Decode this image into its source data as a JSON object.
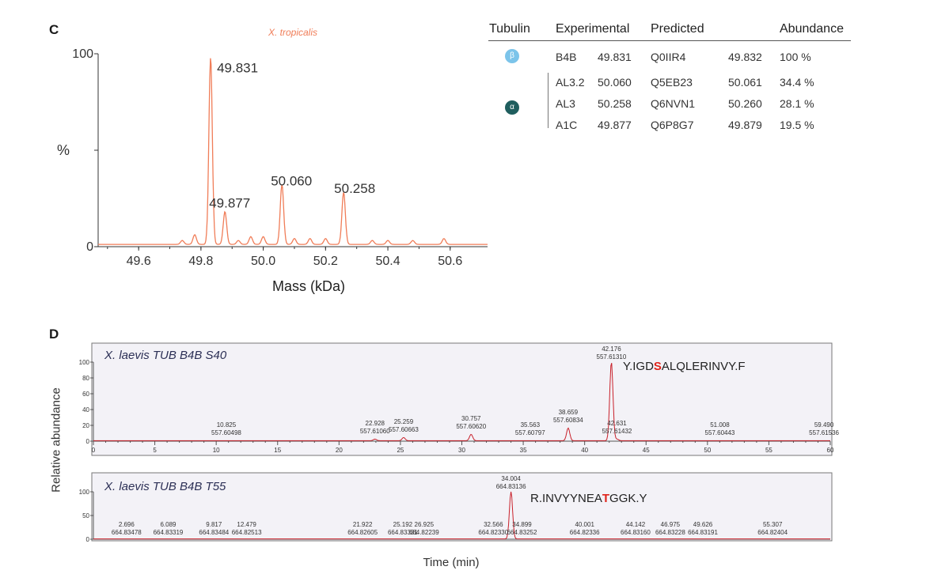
{
  "panel_c": {
    "letter": "C",
    "table": {
      "headers": [
        "Tubulin",
        "Experimental",
        "Predicted",
        "Abundance"
      ],
      "beta_symbol": "β",
      "alpha_symbol": "α",
      "colors": {
        "beta": "#7cc4ea",
        "alpha": "#1f5e5e"
      },
      "rows": [
        {
          "name": "B4B",
          "experimental": "49.831",
          "id": "Q0IIR4",
          "predicted": "49.832",
          "abundance": "100 %"
        },
        {
          "name": "AL3.2",
          "experimental": "50.060",
          "id": "Q5EB23",
          "predicted": "50.061",
          "abundance": "34.4 %"
        },
        {
          "name": "AL3",
          "experimental": "50.258",
          "id": "Q6NVN1",
          "predicted": "50.260",
          "abundance": "28.1 %"
        },
        {
          "name": "A1C",
          "experimental": "49.877",
          "id": "Q6P8G7",
          "predicted": "49.879",
          "abundance": "19.5 %"
        }
      ]
    }
  },
  "panel_d": {
    "letter": "D",
    "ylabel": "Relative abundance",
    "xlabel": "Time (min)"
  },
  "chart_data": [
    {
      "type": "line",
      "title": "X. tropicalis",
      "xlabel": "Mass (kDa)",
      "ylabel": "%",
      "xlim": [
        49.47,
        50.72
      ],
      "ylim": [
        0,
        100
      ],
      "xticks": [
        "49.6",
        "49.8",
        "50.0",
        "50.2",
        "50.4",
        "50.6"
      ],
      "yticks": [
        "0",
        "100"
      ],
      "color": "#f07d58",
      "peaks": [
        {
          "x": 49.831,
          "y": 97,
          "label": "49.831"
        },
        {
          "x": 49.877,
          "y": 17,
          "label": "49.877"
        },
        {
          "x": 50.06,
          "y": 31,
          "label": "50.060"
        },
        {
          "x": 50.258,
          "y": 27,
          "label": "50.258"
        }
      ],
      "minor_peaks": [
        {
          "x": 49.74,
          "y": 2
        },
        {
          "x": 49.78,
          "y": 5
        },
        {
          "x": 49.92,
          "y": 2
        },
        {
          "x": 49.96,
          "y": 4
        },
        {
          "x": 50.0,
          "y": 4
        },
        {
          "x": 50.1,
          "y": 3
        },
        {
          "x": 50.15,
          "y": 3
        },
        {
          "x": 50.2,
          "y": 3
        },
        {
          "x": 50.35,
          "y": 2
        },
        {
          "x": 50.4,
          "y": 2
        },
        {
          "x": 50.48,
          "y": 2
        },
        {
          "x": 50.58,
          "y": 3
        }
      ],
      "grid": false
    },
    {
      "type": "line",
      "title": "X. laevis TUB B4B S40",
      "sequence_parts": [
        "Y.IGD",
        "S",
        "ALQLERINVY.F"
      ],
      "xlim": [
        0,
        60
      ],
      "ylim": [
        0,
        100
      ],
      "xticks": [
        "0",
        "5",
        "10",
        "15",
        "20",
        "25",
        "30",
        "35",
        "40",
        "45",
        "50",
        "55",
        "60"
      ],
      "yticks": [
        "0",
        "20",
        "40",
        "60",
        "80",
        "100"
      ],
      "color": "#c8202a",
      "peaks": [
        {
          "x": 10.825,
          "y": 0,
          "label_rt": "10.825",
          "label_mz": "557.60498"
        },
        {
          "x": 22.928,
          "y": 2,
          "label_rt": "22.928",
          "label_mz": "557.61060"
        },
        {
          "x": 25.259,
          "y": 4,
          "label_rt": "25.259",
          "label_mz": "557.60663"
        },
        {
          "x": 30.757,
          "y": 8,
          "label_rt": "30.757",
          "label_mz": "557.60620"
        },
        {
          "x": 35.563,
          "y": 0,
          "label_rt": "35.563",
          "label_mz": "557.60797"
        },
        {
          "x": 38.659,
          "y": 16,
          "label_rt": "38.659",
          "label_mz": "557.60834"
        },
        {
          "x": 42.176,
          "y": 100,
          "label_rt": "42.176",
          "label_mz": "557.61310"
        },
        {
          "x": 42.631,
          "y": 2,
          "label_rt": "42.631",
          "label_mz": "557.61432"
        },
        {
          "x": 51.008,
          "y": 0,
          "label_rt": "51.008",
          "label_mz": "557.60443"
        },
        {
          "x": 59.49,
          "y": 0,
          "label_rt": "59.490",
          "label_mz": "557.61536"
        }
      ]
    },
    {
      "type": "line",
      "title": "X. laevis TUB B4B T55",
      "sequence_parts": [
        "R.INVYYNEA",
        "T",
        "GGK.Y"
      ],
      "xlim": [
        0,
        60
      ],
      "ylim": [
        0,
        100
      ],
      "yticks": [
        "0",
        "50",
        "100"
      ],
      "color": "#c8202a",
      "peaks": [
        {
          "x": 2.696,
          "y": 0,
          "label_rt": "2.696",
          "label_mz": "664.83478"
        },
        {
          "x": 6.089,
          "y": 0,
          "label_rt": "6.089",
          "label_mz": "664.83319"
        },
        {
          "x": 9.817,
          "y": 0,
          "label_rt": "9.817",
          "label_mz": "664.83484"
        },
        {
          "x": 12.479,
          "y": 0,
          "label_rt": "12.479",
          "label_mz": "664.82513"
        },
        {
          "x": 21.922,
          "y": 0,
          "label_rt": "21.922",
          "label_mz": "664.82605"
        },
        {
          "x": 25.192,
          "y": 0,
          "label_rt": "25.192",
          "label_mz": "664.83331"
        },
        {
          "x": 26.925,
          "y": 0,
          "label_rt": "26.925",
          "label_mz": "664.82239"
        },
        {
          "x": 32.566,
          "y": 0,
          "label_rt": "32.566",
          "label_mz": "664.82330"
        },
        {
          "x": 34.004,
          "y": 100,
          "label_rt": "34.004",
          "label_mz": "664.83136"
        },
        {
          "x": 34.899,
          "y": 0,
          "label_rt": "34.899",
          "label_mz": "664.83252"
        },
        {
          "x": 40.001,
          "y": 0,
          "label_rt": "40.001",
          "label_mz": "664.82336"
        },
        {
          "x": 44.142,
          "y": 0,
          "label_rt": "44.142",
          "label_mz": "664.83160"
        },
        {
          "x": 46.975,
          "y": 0,
          "label_rt": "46.975",
          "label_mz": "664.83228"
        },
        {
          "x": 49.626,
          "y": 0,
          "label_rt": "49.626",
          "label_mz": "664.83191"
        },
        {
          "x": 55.307,
          "y": 0,
          "label_rt": "55.307",
          "label_mz": "664.82404"
        }
      ]
    }
  ]
}
